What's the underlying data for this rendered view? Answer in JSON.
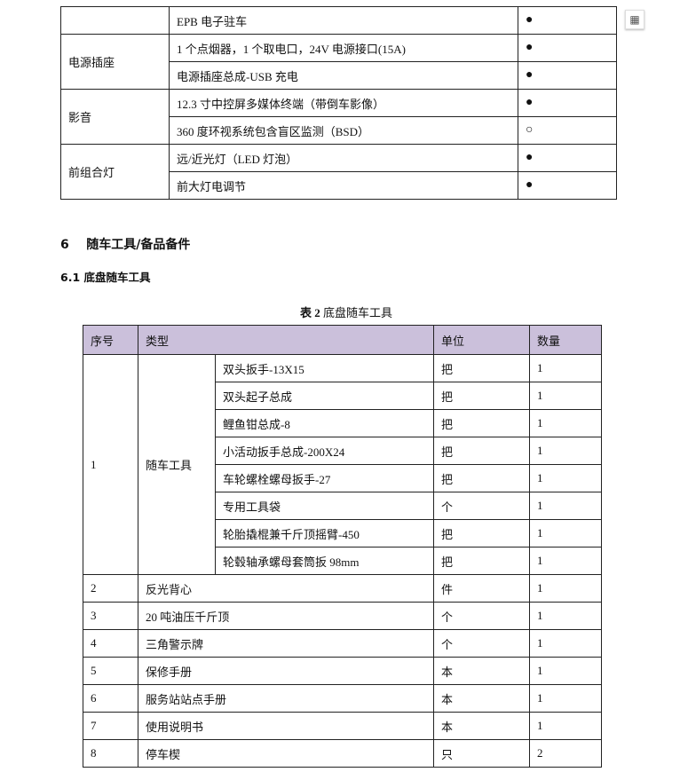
{
  "table1": {
    "rows": [
      {
        "group": "",
        "item": "EPB 电子驻车",
        "mark": "●"
      },
      {
        "group": "电源插座",
        "item": "1 个点烟器，1 个取电口，24V 电源接口(15A)",
        "mark": "●"
      },
      {
        "group": "",
        "item": "电源插座总成-USB 充电",
        "mark": "●"
      },
      {
        "group": "影音",
        "item": "12.3 寸中控屏多媒体终端（带倒车影像）",
        "mark": "●"
      },
      {
        "group": "",
        "item": "360 度环视系统包含盲区监测（BSD）",
        "mark": "○"
      },
      {
        "group": "前组合灯",
        "item": "远/近光灯（LED 灯泡）",
        "mark": "●"
      },
      {
        "group": "",
        "item": "前大灯电调节",
        "mark": "●"
      }
    ]
  },
  "section": {
    "number": "6",
    "title": "随车工具/备品备件",
    "sub": "6.1 底盘随车工具"
  },
  "caption": {
    "label": "表 2",
    "title": "底盘随车工具"
  },
  "table2": {
    "headers": [
      "序号",
      "类型",
      "单位",
      "数量"
    ],
    "header_color": "#cbc0db",
    "group1": {
      "no": "1",
      "type": "随车工具",
      "items": [
        {
          "name": "双头扳手-13X15",
          "unit": "把",
          "qty": "1"
        },
        {
          "name": "双头起子总成",
          "unit": "把",
          "qty": "1"
        },
        {
          "name": "鲤鱼钳总成-8",
          "unit": "把",
          "qty": "1"
        },
        {
          "name": "小活动扳手总成-200X24",
          "unit": "把",
          "qty": "1"
        },
        {
          "name": "车轮螺栓螺母扳手-27",
          "unit": "把",
          "qty": "1"
        },
        {
          "name": "专用工具袋",
          "unit": "个",
          "qty": "1"
        },
        {
          "name": "轮胎撬棍兼千斤顶摇臂-450",
          "unit": "把",
          "qty": "1"
        },
        {
          "name": "轮毂轴承螺母套筒扳 98mm",
          "unit": "把",
          "qty": "1"
        }
      ]
    },
    "rows": [
      {
        "no": "2",
        "type": "反光背心",
        "unit": "件",
        "qty": "1"
      },
      {
        "no": "3",
        "type": "20 吨油压千斤顶",
        "unit": "个",
        "qty": "1"
      },
      {
        "no": "4",
        "type": "三角警示牌",
        "unit": "个",
        "qty": "1"
      },
      {
        "no": "5",
        "type": "保修手册",
        "unit": "本",
        "qty": "1"
      },
      {
        "no": "6",
        "type": "服务站站点手册",
        "unit": "本",
        "qty": "1"
      },
      {
        "no": "7",
        "type": "使用说明书",
        "unit": "本",
        "qty": "1"
      },
      {
        "no": "8",
        "type": "停车楔",
        "unit": "只",
        "qty": "2"
      }
    ]
  },
  "icons": {
    "side": "calculator-icon"
  }
}
